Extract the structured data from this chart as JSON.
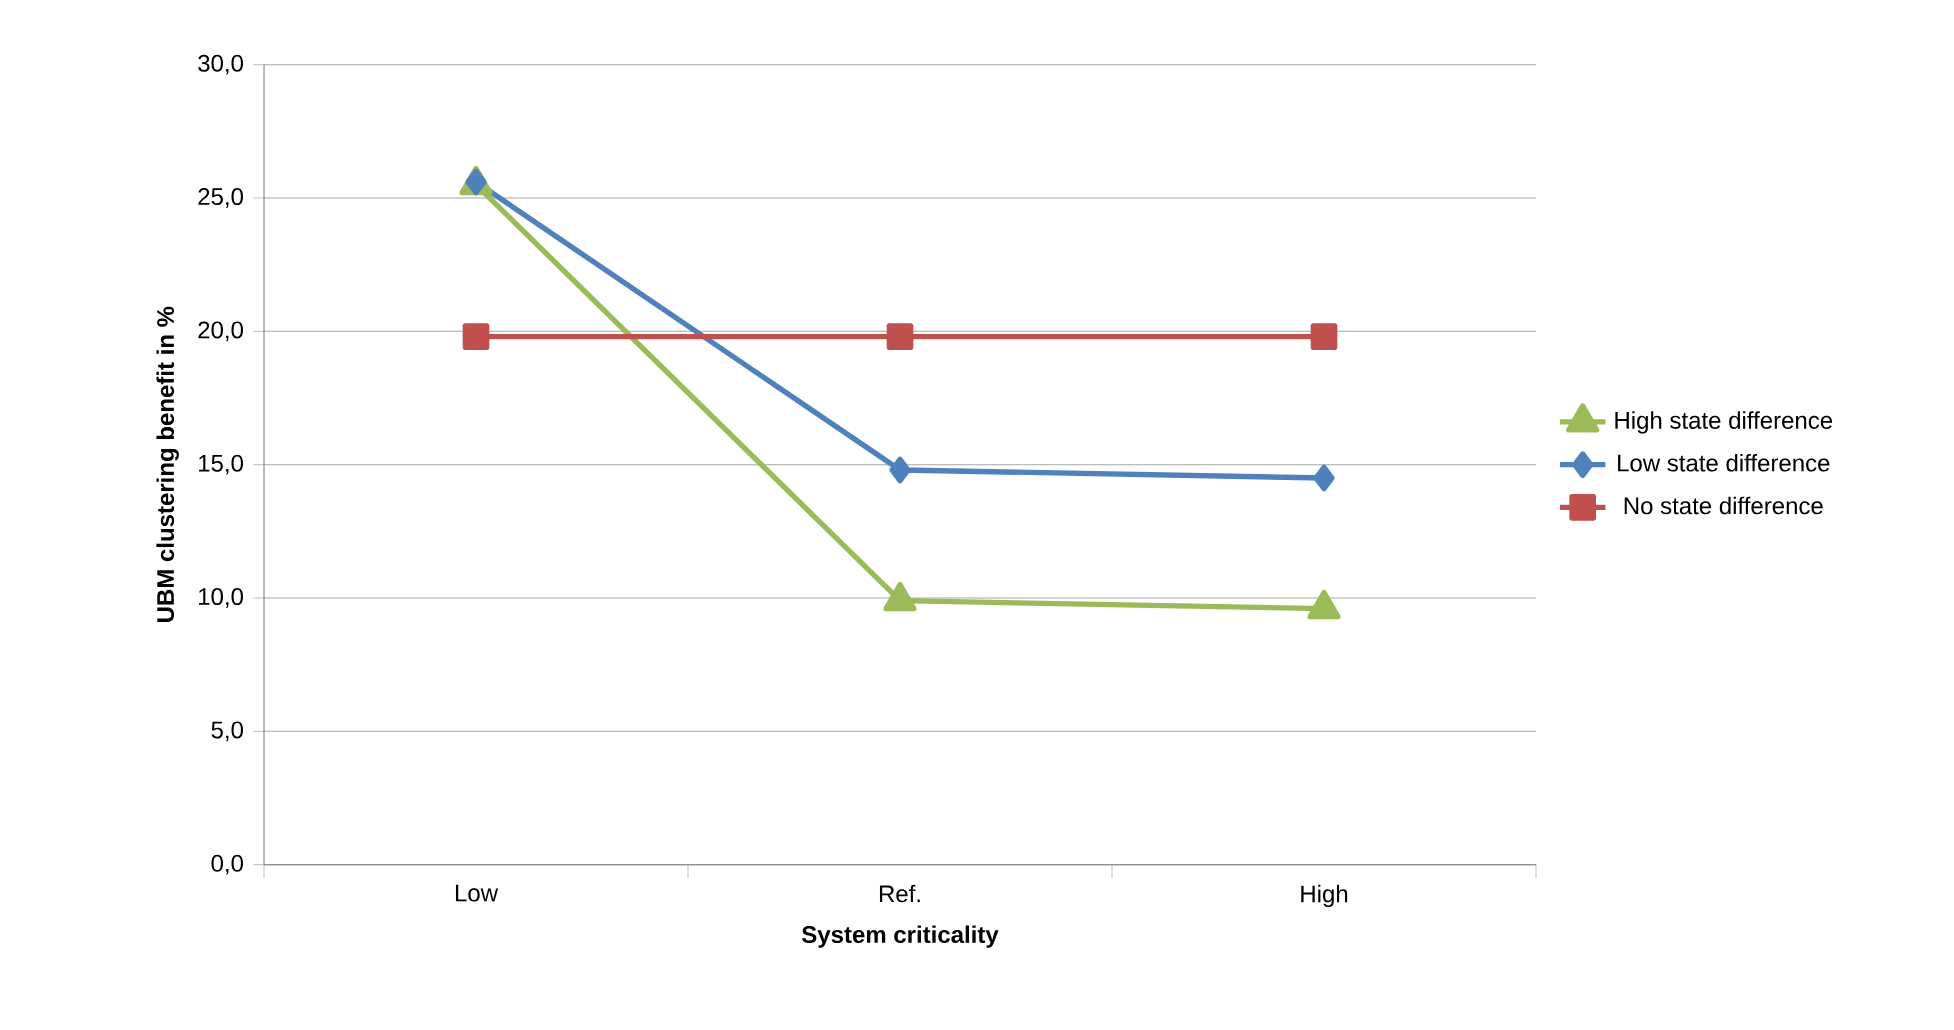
{
  "chart_data": {
    "type": "line",
    "xlabel": "System criticality",
    "ylabel": "UBM clustering benefit in %",
    "categories": [
      "Low",
      "Ref.",
      "High"
    ],
    "series": [
      {
        "name": "High state difference",
        "color": "#9bbb59",
        "marker": "triangle",
        "values": [
          25.5,
          9.9,
          9.6
        ]
      },
      {
        "name": "Low state difference",
        "color": "#4f81bd",
        "marker": "diamond",
        "values": [
          25.6,
          14.8,
          14.5
        ]
      },
      {
        "name": "No state difference",
        "color": "#c0504d",
        "marker": "square",
        "values": [
          19.8,
          19.8,
          19.8
        ]
      }
    ],
    "ylim": [
      0,
      30
    ],
    "yticks": [
      {
        "value": 0,
        "label": "0,0"
      },
      {
        "value": 5,
        "label": "5,0"
      },
      {
        "value": 10,
        "label": "10,0"
      },
      {
        "value": 15,
        "label": "15,0"
      },
      {
        "value": 20,
        "label": "20,0"
      },
      {
        "value": 25,
        "label": "25,0"
      },
      {
        "value": 30,
        "label": "30,0"
      }
    ],
    "grid": "y",
    "legend": "right",
    "line_style": "solid"
  }
}
